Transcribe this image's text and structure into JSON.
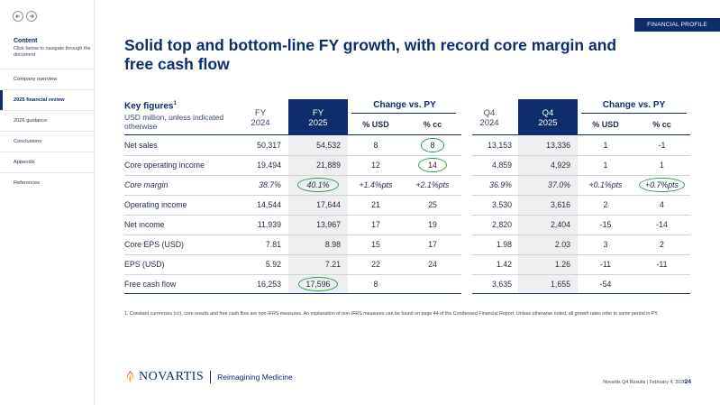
{
  "sidebar": {
    "title": "Content",
    "subtitle": "Click below to navigate through the document",
    "items": [
      {
        "label": "Company overview"
      },
      {
        "label": "2025 financial review"
      },
      {
        "label": "2026 guidance"
      },
      {
        "label": "Conclusions"
      },
      {
        "label": "Appendix"
      },
      {
        "label": "References"
      }
    ]
  },
  "tag": "FINANCIAL PROFILE",
  "title": "Solid top and bottom-line FY growth, with record core margin and free cash flow",
  "table": {
    "key_title": "Key figures",
    "key_sup": "1",
    "key_sub": "USD million, unless indicated otherwise",
    "fy2024": {
      "l1": "FY",
      "l2": "2024"
    },
    "fy2025": {
      "l1": "FY",
      "l2": "2025"
    },
    "change_fy": "Change vs. PY",
    "usd": "% USD",
    "cc": "% cc",
    "q42024": {
      "l1": "Q4",
      "l2": "2024"
    },
    "q42025": {
      "l1": "Q4",
      "l2": "2025"
    },
    "change_q4": "Change vs. PY",
    "usd2": "% USD",
    "cc2": "% cc",
    "rows": [
      {
        "label": "Net sales",
        "c": [
          "50,317",
          "54,532",
          "8",
          "8",
          "13,153",
          "13,336",
          "1",
          "-1"
        ]
      },
      {
        "label": "Core operating income",
        "c": [
          "19,494",
          "21,889",
          "12",
          "14",
          "4,859",
          "4,929",
          "1",
          "1"
        ]
      },
      {
        "label": "Core margin",
        "c": [
          "38.7%",
          "40.1%",
          "+1.4%pts",
          "+2.1%pts",
          "36.9%",
          "37.0%",
          "+0.1%pts",
          "+0.7%pts"
        ]
      },
      {
        "label": "Operating income",
        "c": [
          "14,544",
          "17,644",
          "21",
          "25",
          "3,530",
          "3,616",
          "2",
          "4"
        ]
      },
      {
        "label": "Net income",
        "c": [
          "11,939",
          "13,967",
          "17",
          "19",
          "2,820",
          "2,404",
          "-15",
          "-14"
        ]
      },
      {
        "label": "Core EPS (USD)",
        "c": [
          "7.81",
          "8.98",
          "15",
          "17",
          "1.98",
          "2.03",
          "3",
          "2"
        ]
      },
      {
        "label": "EPS (USD)",
        "c": [
          "5.92",
          "7.21",
          "22",
          "24",
          "1.42",
          "1.26",
          "-11",
          "-11"
        ]
      },
      {
        "label": "Free cash flow",
        "c": [
          "16,253",
          "17,596",
          "8",
          "",
          "3,635",
          "1,655",
          "-54",
          ""
        ]
      }
    ]
  },
  "footnote": "1. Constant currencies (cc), core results and free cash flow are non-IFRS measures. An explanation of non-IFRS measures can be found on page 44 of the Condensed Financial Report. Unless otherwise noted, all growth rates refer to same period in PY.",
  "logo": {
    "word": "NOVARTIS",
    "tagline": "Reimagining Medicine"
  },
  "footer": {
    "text": "Novartis Q4 Results | February 4, 2026",
    "page": "24"
  }
}
